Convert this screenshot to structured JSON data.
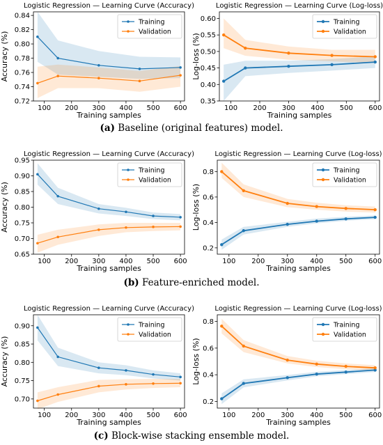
{
  "captions": [
    {
      "label": "(a)",
      "text": "Baseline (original features) model."
    },
    {
      "label": "(b)",
      "text": "Feature-enriched model."
    },
    {
      "label": "(c)",
      "text": "Block-wise stacking ensemble model."
    }
  ],
  "colors": {
    "training": "#1f77b4",
    "validation": "#ff7f0e"
  },
  "chart_data": [
    {
      "type": "line",
      "title": "Logistic Regression — Learning Curve (Accuracy)",
      "xlabel": "Training samples",
      "ylabel": "Accuracy (%)",
      "xlim": [
        60,
        615
      ],
      "ylim": [
        0.72,
        0.845
      ],
      "xticks": [
        100,
        200,
        300,
        400,
        500,
        600
      ],
      "yticks": [
        0.72,
        0.74,
        0.76,
        0.78,
        0.8,
        0.82,
        0.84
      ],
      "ytick_labels": [
        "0.72",
        "0.74",
        "0.76",
        "0.78",
        "0.80",
        "0.82",
        "0.84"
      ],
      "x": [
        75,
        150,
        300,
        450,
        600
      ],
      "series": [
        {
          "name": "Training",
          "values": [
            0.81,
            0.78,
            0.77,
            0.765,
            0.767
          ],
          "band_low": [
            0.775,
            0.757,
            0.754,
            0.751,
            0.752
          ],
          "band_high": [
            0.845,
            0.805,
            0.79,
            0.782,
            0.781
          ]
        },
        {
          "name": "Validation",
          "values": [
            0.745,
            0.755,
            0.752,
            0.748,
            0.756
          ],
          "band_low": [
            0.724,
            0.738,
            0.738,
            0.733,
            0.74
          ],
          "band_high": [
            0.768,
            0.771,
            0.767,
            0.762,
            0.769
          ]
        }
      ],
      "legend": "top-right",
      "grid": false,
      "markers": "small"
    },
    {
      "type": "line",
      "title": "Logistic Regression — Learning Curve (Log-loss)",
      "xlabel": "Training samples",
      "ylabel": "Log-loss (%)",
      "xlim": [
        60,
        615
      ],
      "ylim": [
        0.35,
        0.62
      ],
      "xticks": [
        100,
        200,
        300,
        400,
        500,
        600
      ],
      "yticks": [
        0.35,
        0.4,
        0.45,
        0.5,
        0.55,
        0.6
      ],
      "ytick_labels": [
        "0.35",
        "0.40",
        "0.45",
        "0.50",
        "0.55",
        "0.60"
      ],
      "x": [
        75,
        150,
        300,
        450,
        600
      ],
      "series": [
        {
          "name": "Training",
          "values": [
            0.41,
            0.45,
            0.455,
            0.46,
            0.468
          ],
          "band_low": [
            0.35,
            0.425,
            0.435,
            0.442,
            0.45
          ],
          "band_high": [
            0.46,
            0.472,
            0.472,
            0.477,
            0.485
          ]
        },
        {
          "name": "Validation",
          "values": [
            0.55,
            0.51,
            0.495,
            0.488,
            0.484
          ],
          "band_low": [
            0.51,
            0.487,
            0.475,
            0.47,
            0.465
          ],
          "band_high": [
            0.6,
            0.535,
            0.515,
            0.505,
            0.505
          ]
        }
      ],
      "legend": "top-right",
      "grid": false,
      "markers": "medium"
    },
    {
      "type": "line",
      "title": "Logistic Regression — Learning Curve (Accuracy)",
      "xlabel": "Training samples",
      "ylabel": "Accuracy (%)",
      "xlim": [
        60,
        615
      ],
      "ylim": [
        0.65,
        0.95
      ],
      "xticks": [
        100,
        200,
        300,
        400,
        500,
        600
      ],
      "yticks": [
        0.65,
        0.7,
        0.75,
        0.8,
        0.85,
        0.9,
        0.95
      ],
      "ytick_labels": [
        "0.65",
        "0.70",
        "0.75",
        "0.80",
        "0.85",
        "0.90",
        "0.95"
      ],
      "x": [
        75,
        150,
        300,
        400,
        500,
        600
      ],
      "series": [
        {
          "name": "Training",
          "values": [
            0.905,
            0.835,
            0.795,
            0.785,
            0.772,
            0.768
          ],
          "band_low": [
            0.872,
            0.81,
            0.78,
            0.772,
            0.762,
            0.758
          ],
          "band_high": [
            0.94,
            0.862,
            0.81,
            0.798,
            0.783,
            0.778
          ]
        },
        {
          "name": "Validation",
          "values": [
            0.685,
            0.705,
            0.728,
            0.735,
            0.737,
            0.738
          ],
          "band_low": [
            0.655,
            0.68,
            0.708,
            0.72,
            0.724,
            0.726
          ],
          "band_high": [
            0.712,
            0.728,
            0.745,
            0.75,
            0.75,
            0.75
          ]
        }
      ],
      "legend": "top-right",
      "grid": false,
      "markers": "small"
    },
    {
      "type": "line",
      "title": "Logistic Regression — Learning Curve (Log-loss)",
      "xlabel": "Training samples",
      "ylabel": "Log-loss (%)",
      "xlim": [
        60,
        615
      ],
      "ylim": [
        0.15,
        0.89
      ],
      "xticks": [
        100,
        200,
        300,
        400,
        500,
        600
      ],
      "yticks": [
        0.2,
        0.4,
        0.6,
        0.8
      ],
      "ytick_labels": [
        "0.2",
        "0.4",
        "0.6",
        "0.8"
      ],
      "x": [
        75,
        150,
        300,
        400,
        500,
        600
      ],
      "series": [
        {
          "name": "Training",
          "values": [
            0.225,
            0.335,
            0.385,
            0.41,
            0.428,
            0.44
          ],
          "band_low": [
            0.185,
            0.305,
            0.365,
            0.393,
            0.413,
            0.425
          ],
          "band_high": [
            0.265,
            0.365,
            0.405,
            0.43,
            0.445,
            0.455
          ]
        },
        {
          "name": "Validation",
          "values": [
            0.8,
            0.65,
            0.55,
            0.525,
            0.51,
            0.5
          ],
          "band_low": [
            0.75,
            0.6,
            0.52,
            0.5,
            0.485,
            0.478
          ],
          "band_high": [
            0.87,
            0.7,
            0.585,
            0.555,
            0.535,
            0.525
          ]
        }
      ],
      "legend": "top-right",
      "grid": false,
      "markers": "medium"
    },
    {
      "type": "line",
      "title": "Logistic Regression — Learning Curve (Accuracy)",
      "xlabel": "Training samples",
      "ylabel": "Accuracy (%)",
      "xlim": [
        60,
        615
      ],
      "ylim": [
        0.675,
        0.93
      ],
      "xticks": [
        100,
        200,
        300,
        400,
        500,
        600
      ],
      "yticks": [
        0.7,
        0.75,
        0.8,
        0.85,
        0.9
      ],
      "ytick_labels": [
        "0.70",
        "0.75",
        "0.80",
        "0.85",
        "0.90"
      ],
      "x": [
        75,
        150,
        300,
        400,
        500,
        600
      ],
      "series": [
        {
          "name": "Training",
          "values": [
            0.895,
            0.815,
            0.785,
            0.778,
            0.767,
            0.76
          ],
          "band_low": [
            0.86,
            0.79,
            0.77,
            0.765,
            0.756,
            0.75
          ],
          "band_high": [
            0.93,
            0.84,
            0.8,
            0.792,
            0.778,
            0.77
          ]
        },
        {
          "name": "Validation",
          "values": [
            0.695,
            0.712,
            0.735,
            0.74,
            0.742,
            0.743
          ],
          "band_low": [
            0.672,
            0.692,
            0.718,
            0.726,
            0.73,
            0.732
          ],
          "band_high": [
            0.718,
            0.732,
            0.752,
            0.754,
            0.755,
            0.755
          ]
        }
      ],
      "legend": "top-right",
      "grid": false,
      "markers": "small"
    },
    {
      "type": "line",
      "title": "Logistic Regression — Learning Curve (Log-loss)",
      "xlabel": "Training samples",
      "ylabel": "Log-loss (%)",
      "xlim": [
        60,
        615
      ],
      "ylim": [
        0.15,
        0.85
      ],
      "xticks": [
        100,
        200,
        300,
        400,
        500,
        600
      ],
      "yticks": [
        0.2,
        0.4,
        0.6,
        0.8
      ],
      "ytick_labels": [
        "0.2",
        "0.4",
        "0.6",
        "0.8"
      ],
      "x": [
        75,
        150,
        300,
        400,
        500,
        600
      ],
      "series": [
        {
          "name": "Training",
          "values": [
            0.22,
            0.335,
            0.378,
            0.405,
            0.42,
            0.435
          ],
          "band_low": [
            0.18,
            0.305,
            0.358,
            0.388,
            0.405,
            0.42
          ],
          "band_high": [
            0.26,
            0.365,
            0.398,
            0.422,
            0.435,
            0.45
          ]
        },
        {
          "name": "Validation",
          "values": [
            0.765,
            0.615,
            0.51,
            0.48,
            0.463,
            0.452
          ],
          "band_low": [
            0.71,
            0.57,
            0.485,
            0.458,
            0.442,
            0.432
          ],
          "band_high": [
            0.82,
            0.66,
            0.54,
            0.505,
            0.485,
            0.472
          ]
        }
      ],
      "legend": "top-right",
      "grid": false,
      "markers": "medium"
    }
  ]
}
